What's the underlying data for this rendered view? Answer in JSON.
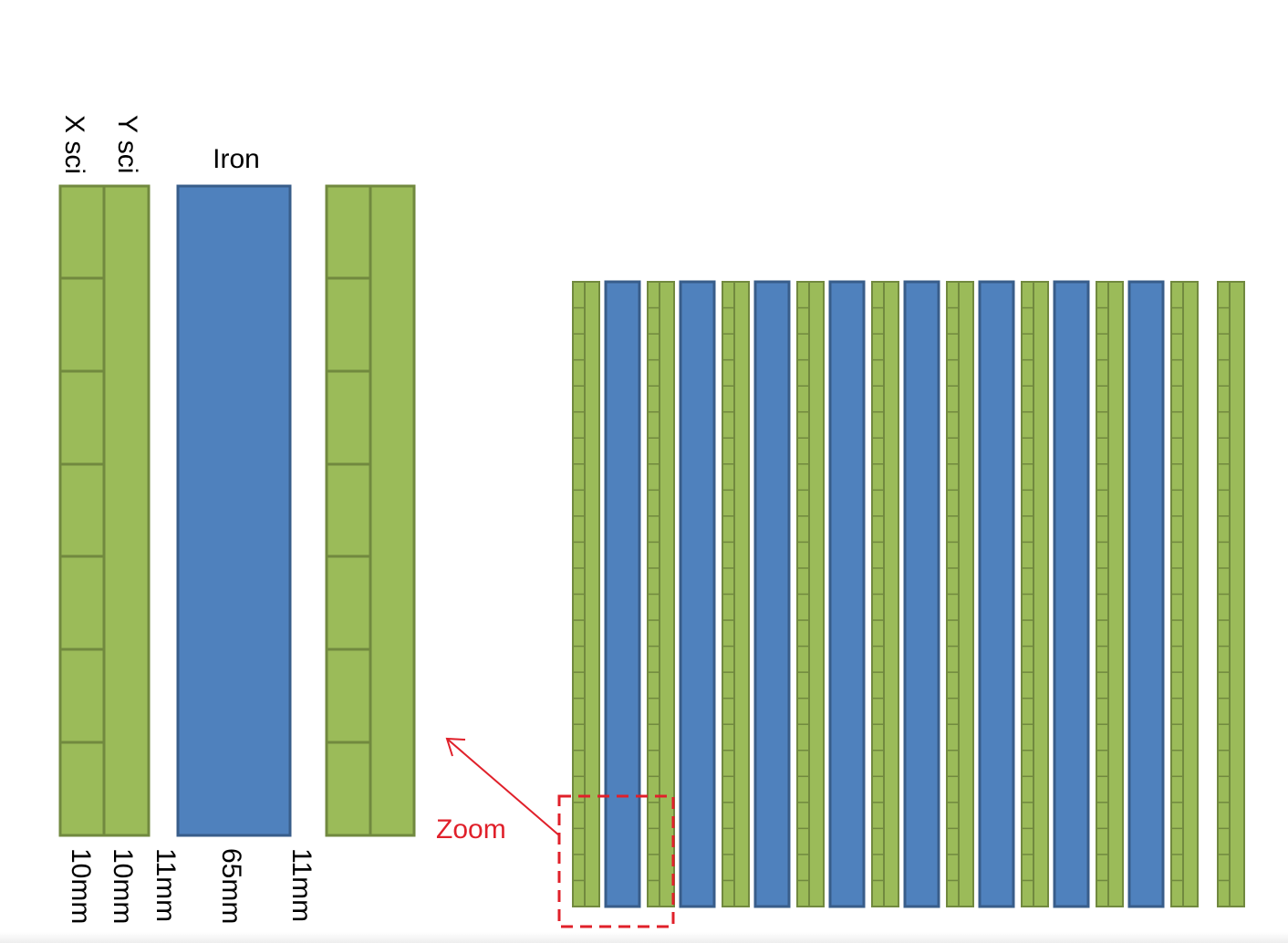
{
  "labels": {
    "x_sci": "X sci",
    "y_sci": "Y sci",
    "iron": "Iron",
    "zoom": "Zoom"
  },
  "dimensions": [
    "10mm",
    "10mm",
    "11mm",
    "65mm",
    "11mm"
  ],
  "layer_sequence": [
    "scintillator",
    "iron",
    "scintillator",
    "iron",
    "scintillator",
    "iron",
    "scintillator",
    "iron",
    "scintillator",
    "iron",
    "scintillator",
    "iron",
    "scintillator",
    "iron",
    "scintillator",
    "iron",
    "scintillator",
    "scintillator"
  ],
  "colors": {
    "scintillator_fill": "#9bbb59",
    "scintillator_stroke": "#71893f",
    "iron_fill": "#4f81bd",
    "iron_stroke": "#385d8a",
    "zoom_color": "#e0202a",
    "text": "#000000"
  }
}
